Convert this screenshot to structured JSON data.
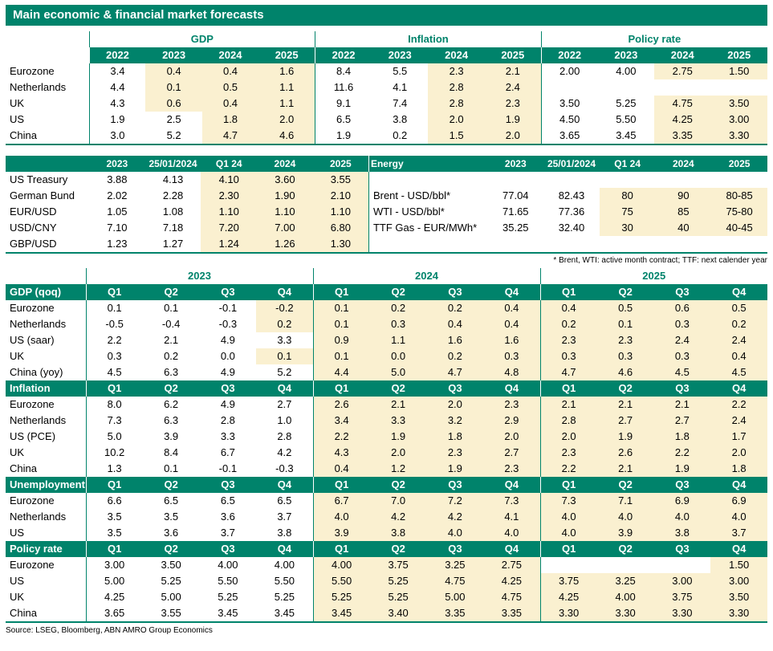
{
  "title": "Main economic & financial market forecasts",
  "source": "Source: LSEG, Bloomberg, ABN AMRO Group Economics",
  "footnote": "* Brent, WTI: active month contract; TTF: next calender year",
  "colors": {
    "teal": "#00836B",
    "cream": "#FAF0D0"
  },
  "annual_table": {
    "groups": [
      "GDP",
      "Inflation",
      "Policy rate"
    ],
    "years": [
      "2022",
      "2023",
      "2024",
      "2025"
    ],
    "rows": [
      {
        "label": "Eurozone",
        "values": [
          "3.4",
          "0.4",
          "0.4",
          "1.6",
          "8.4",
          "5.5",
          "2.3",
          "2.1",
          "2.00",
          "4.00",
          "2.75",
          "1.50"
        ],
        "hl": [
          0,
          1,
          1,
          1,
          0,
          0,
          1,
          1,
          0,
          0,
          1,
          1
        ]
      },
      {
        "label": "Netherlands",
        "values": [
          "4.4",
          "0.1",
          "0.5",
          "1.1",
          "11.6",
          "4.1",
          "2.8",
          "2.4",
          "",
          "",
          "",
          ""
        ],
        "hl": [
          0,
          1,
          1,
          1,
          0,
          0,
          1,
          1,
          0,
          0,
          0,
          0
        ]
      },
      {
        "label": "UK",
        "values": [
          "4.3",
          "0.6",
          "0.4",
          "1.1",
          "9.1",
          "7.4",
          "2.8",
          "2.3",
          "3.50",
          "5.25",
          "4.75",
          "3.50"
        ],
        "hl": [
          0,
          1,
          1,
          1,
          0,
          0,
          1,
          1,
          0,
          0,
          1,
          1
        ]
      },
      {
        "label": "US",
        "values": [
          "1.9",
          "2.5",
          "1.8",
          "2.0",
          "6.5",
          "3.8",
          "2.0",
          "1.9",
          "4.50",
          "5.50",
          "4.25",
          "3.00"
        ],
        "hl": [
          0,
          0,
          1,
          1,
          0,
          0,
          1,
          1,
          0,
          0,
          1,
          1
        ]
      },
      {
        "label": "China",
        "values": [
          "3.0",
          "5.2",
          "4.7",
          "4.6",
          "1.9",
          "0.2",
          "1.5",
          "2.0",
          "3.65",
          "3.45",
          "3.35",
          "3.30"
        ],
        "hl": [
          0,
          0,
          1,
          1,
          0,
          0,
          1,
          1,
          0,
          0,
          1,
          1
        ]
      }
    ]
  },
  "markets_table": {
    "left": {
      "headers": [
        "2023",
        "25/01/2024",
        "Q1 24",
        "2024",
        "2025"
      ],
      "rows": [
        {
          "label": "US Treasury",
          "values": [
            "3.88",
            "4.13",
            "4.10",
            "3.60",
            "3.55"
          ],
          "hl": [
            0,
            0,
            1,
            1,
            1
          ]
        },
        {
          "label": "German Bund",
          "values": [
            "2.02",
            "2.28",
            "2.30",
            "1.90",
            "2.10"
          ],
          "hl": [
            0,
            0,
            1,
            1,
            1
          ]
        },
        {
          "label": "EUR/USD",
          "values": [
            "1.05",
            "1.08",
            "1.10",
            "1.10",
            "1.10"
          ],
          "hl": [
            0,
            0,
            1,
            1,
            1
          ]
        },
        {
          "label": "USD/CNY",
          "values": [
            "7.10",
            "7.18",
            "7.20",
            "7.00",
            "6.80"
          ],
          "hl": [
            0,
            0,
            1,
            1,
            1
          ]
        },
        {
          "label": "GBP/USD",
          "values": [
            "1.23",
            "1.27",
            "1.24",
            "1.26",
            "1.30"
          ],
          "hl": [
            0,
            0,
            1,
            1,
            1
          ]
        }
      ]
    },
    "right": {
      "title": "Energy",
      "headers": [
        "2023",
        "25/01/2024",
        "Q1 24",
        "2024",
        "2025"
      ],
      "rows": [
        {
          "label": "",
          "values": [
            "",
            "",
            "",
            "",
            ""
          ],
          "hl": [
            0,
            0,
            0,
            0,
            0
          ]
        },
        {
          "label": "Brent - USD/bbl*",
          "values": [
            "77.04",
            "82.43",
            "80",
            "90",
            "80-85"
          ],
          "hl": [
            0,
            0,
            1,
            1,
            1
          ]
        },
        {
          "label": "WTI - USD/bbl*",
          "values": [
            "71.65",
            "77.36",
            "75",
            "85",
            "75-80"
          ],
          "hl": [
            0,
            0,
            1,
            1,
            1
          ]
        },
        {
          "label": "TTF Gas - EUR/MWh*",
          "values": [
            "35.25",
            "32.40",
            "30",
            "40",
            "40-45"
          ],
          "hl": [
            0,
            0,
            1,
            1,
            1
          ]
        },
        {
          "label": "",
          "values": [
            "",
            "",
            "",
            "",
            ""
          ],
          "hl": [
            0,
            0,
            0,
            0,
            0
          ]
        }
      ]
    }
  },
  "quarterly_table": {
    "year_groups": [
      "2023",
      "2024",
      "2025"
    ],
    "quarters": [
      "Q1",
      "Q2",
      "Q3",
      "Q4"
    ],
    "sections": [
      {
        "name": "GDP (qoq)",
        "rows": [
          {
            "label": "Eurozone",
            "values": [
              "0.1",
              "0.1",
              "-0.1",
              "-0.2",
              "0.1",
              "0.2",
              "0.2",
              "0.4",
              "0.4",
              "0.5",
              "0.6",
              "0.5"
            ],
            "hl": [
              0,
              0,
              0,
              1,
              1,
              1,
              1,
              1,
              1,
              1,
              1,
              1
            ]
          },
          {
            "label": "Netherlands",
            "values": [
              "-0.5",
              "-0.4",
              "-0.3",
              "0.2",
              "0.1",
              "0.3",
              "0.4",
              "0.4",
              "0.2",
              "0.1",
              "0.3",
              "0.2"
            ],
            "hl": [
              0,
              0,
              0,
              1,
              1,
              1,
              1,
              1,
              1,
              1,
              1,
              1
            ]
          },
          {
            "label": "US (saar)",
            "values": [
              "2.2",
              "2.1",
              "4.9",
              "3.3",
              "0.9",
              "1.1",
              "1.6",
              "1.6",
              "2.3",
              "2.3",
              "2.4",
              "2.4"
            ],
            "hl": [
              0,
              0,
              0,
              0,
              1,
              1,
              1,
              1,
              1,
              1,
              1,
              1
            ]
          },
          {
            "label": "UK",
            "values": [
              "0.3",
              "0.2",
              "0.0",
              "0.1",
              "0.1",
              "0.0",
              "0.2",
              "0.3",
              "0.3",
              "0.3",
              "0.3",
              "0.4"
            ],
            "hl": [
              0,
              0,
              0,
              1,
              1,
              1,
              1,
              1,
              1,
              1,
              1,
              1
            ]
          },
          {
            "label": "China (yoy)",
            "values": [
              "4.5",
              "6.3",
              "4.9",
              "5.2",
              "4.4",
              "5.0",
              "4.7",
              "4.8",
              "4.7",
              "4.6",
              "4.5",
              "4.5"
            ],
            "hl": [
              0,
              0,
              0,
              0,
              1,
              1,
              1,
              1,
              1,
              1,
              1,
              1
            ]
          }
        ]
      },
      {
        "name": "Inflation",
        "rows": [
          {
            "label": "Eurozone",
            "values": [
              "8.0",
              "6.2",
              "4.9",
              "2.7",
              "2.6",
              "2.1",
              "2.0",
              "2.3",
              "2.1",
              "2.1",
              "2.1",
              "2.2"
            ],
            "hl": [
              0,
              0,
              0,
              0,
              1,
              1,
              1,
              1,
              1,
              1,
              1,
              1
            ]
          },
          {
            "label": "Netherlands",
            "values": [
              "7.3",
              "6.3",
              "2.8",
              "1.0",
              "3.4",
              "3.3",
              "3.2",
              "2.9",
              "2.8",
              "2.7",
              "2.7",
              "2.4"
            ],
            "hl": [
              0,
              0,
              0,
              0,
              1,
              1,
              1,
              1,
              1,
              1,
              1,
              1
            ]
          },
          {
            "label": "US (PCE)",
            "values": [
              "5.0",
              "3.9",
              "3.3",
              "2.8",
              "2.2",
              "1.9",
              "1.8",
              "2.0",
              "2.0",
              "1.9",
              "1.8",
              "1.7"
            ],
            "hl": [
              0,
              0,
              0,
              0,
              1,
              1,
              1,
              1,
              1,
              1,
              1,
              1
            ]
          },
          {
            "label": "UK",
            "values": [
              "10.2",
              "8.4",
              "6.7",
              "4.2",
              "4.3",
              "2.0",
              "2.3",
              "2.7",
              "2.3",
              "2.6",
              "2.2",
              "2.0"
            ],
            "hl": [
              0,
              0,
              0,
              0,
              1,
              1,
              1,
              1,
              1,
              1,
              1,
              1
            ]
          },
          {
            "label": "China",
            "values": [
              "1.3",
              "0.1",
              "-0.1",
              "-0.3",
              "0.4",
              "1.2",
              "1.9",
              "2.3",
              "2.2",
              "2.1",
              "1.9",
              "1.8"
            ],
            "hl": [
              0,
              0,
              0,
              0,
              1,
              1,
              1,
              1,
              1,
              1,
              1,
              1
            ]
          }
        ]
      },
      {
        "name": "Unemployment",
        "rows": [
          {
            "label": "Eurozone",
            "values": [
              "6.6",
              "6.5",
              "6.5",
              "6.5",
              "6.7",
              "7.0",
              "7.2",
              "7.3",
              "7.3",
              "7.1",
              "6.9",
              "6.9"
            ],
            "hl": [
              0,
              0,
              0,
              0,
              1,
              1,
              1,
              1,
              1,
              1,
              1,
              1
            ]
          },
          {
            "label": "Netherlands",
            "values": [
              "3.5",
              "3.5",
              "3.6",
              "3.7",
              "4.0",
              "4.2",
              "4.2",
              "4.1",
              "4.0",
              "4.0",
              "4.0",
              "4.0"
            ],
            "hl": [
              0,
              0,
              0,
              0,
              1,
              1,
              1,
              1,
              1,
              1,
              1,
              1
            ]
          },
          {
            "label": "US",
            "values": [
              "3.5",
              "3.6",
              "3.7",
              "3.8",
              "3.9",
              "3.8",
              "4.0",
              "4.0",
              "4.0",
              "3.9",
              "3.8",
              "3.7"
            ],
            "hl": [
              0,
              0,
              0,
              0,
              1,
              1,
              1,
              1,
              1,
              1,
              1,
              1
            ]
          }
        ]
      },
      {
        "name": "Policy rate",
        "rows": [
          {
            "label": "Eurozone",
            "values": [
              "3.00",
              "3.50",
              "4.00",
              "4.00",
              "4.00",
              "3.75",
              "3.25",
              "2.75",
              "",
              "",
              "",
              "1.50"
            ],
            "hl": [
              0,
              0,
              0,
              0,
              1,
              1,
              1,
              1,
              0,
              0,
              0,
              1
            ]
          },
          {
            "label": "US",
            "values": [
              "5.00",
              "5.25",
              "5.50",
              "5.50",
              "5.50",
              "5.25",
              "4.75",
              "4.25",
              "3.75",
              "3.25",
              "3.00",
              "3.00"
            ],
            "hl": [
              0,
              0,
              0,
              0,
              1,
              1,
              1,
              1,
              1,
              1,
              1,
              1
            ]
          },
          {
            "label": "UK",
            "values": [
              "4.25",
              "5.00",
              "5.25",
              "5.25",
              "5.25",
              "5.25",
              "5.00",
              "4.75",
              "4.25",
              "4.00",
              "3.75",
              "3.50"
            ],
            "hl": [
              0,
              0,
              0,
              0,
              1,
              1,
              1,
              1,
              1,
              1,
              1,
              1
            ]
          },
          {
            "label": "China",
            "values": [
              "3.65",
              "3.55",
              "3.45",
              "3.45",
              "3.45",
              "3.40",
              "3.35",
              "3.35",
              "3.30",
              "3.30",
              "3.30",
              "3.30"
            ],
            "hl": [
              0,
              0,
              0,
              0,
              1,
              1,
              1,
              1,
              1,
              1,
              1,
              1
            ]
          }
        ]
      }
    ]
  }
}
